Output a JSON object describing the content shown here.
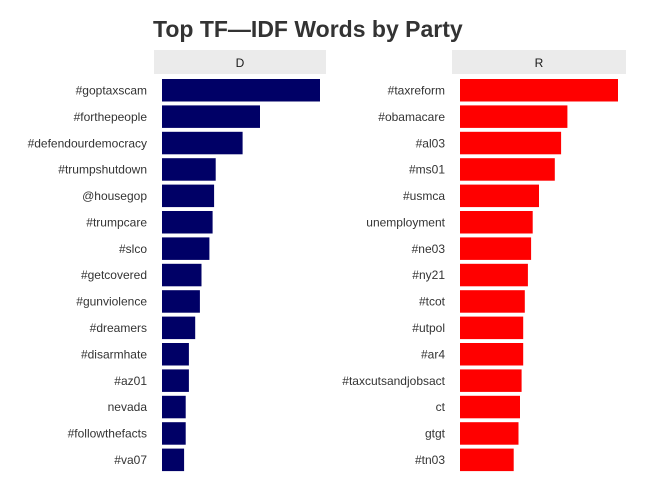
{
  "chart_data": {
    "type": "bar",
    "orientation": "horizontal",
    "title": "Top TF—IDF Words by Party",
    "xlabel": "",
    "ylabel": "",
    "grid": false,
    "legend": "none",
    "xlim": [
      0,
      1
    ],
    "panels": [
      {
        "strip": "D",
        "color": "#000066",
        "categories": [
          "#goptaxscam",
          "#forthepeople",
          "#defendourdemocracy",
          "#trumpshutdown",
          "@housegop",
          "#trumpcare",
          "#slco",
          "#getcovered",
          "#gunviolence",
          "#dreamers",
          "#disarmhate",
          "#az01",
          "nevada",
          "#followthefacts",
          "#va07"
        ],
        "values": [
          1.0,
          0.62,
          0.51,
          0.34,
          0.33,
          0.32,
          0.3,
          0.25,
          0.24,
          0.21,
          0.17,
          0.17,
          0.15,
          0.15,
          0.14
        ]
      },
      {
        "strip": "R",
        "color": "#ff0000",
        "categories": [
          "#taxreform",
          "#obamacare",
          "#al03",
          "#ms01",
          "#usmca",
          "unemployment",
          "#ne03",
          "#ny21",
          "#tcot",
          "#utpol",
          "#ar4",
          "#taxcutsandjobsact",
          "ct",
          "gtgt",
          "#tn03"
        ],
        "values": [
          1.0,
          0.68,
          0.64,
          0.6,
          0.5,
          0.46,
          0.45,
          0.43,
          0.41,
          0.4,
          0.4,
          0.39,
          0.38,
          0.37,
          0.34
        ]
      }
    ]
  }
}
